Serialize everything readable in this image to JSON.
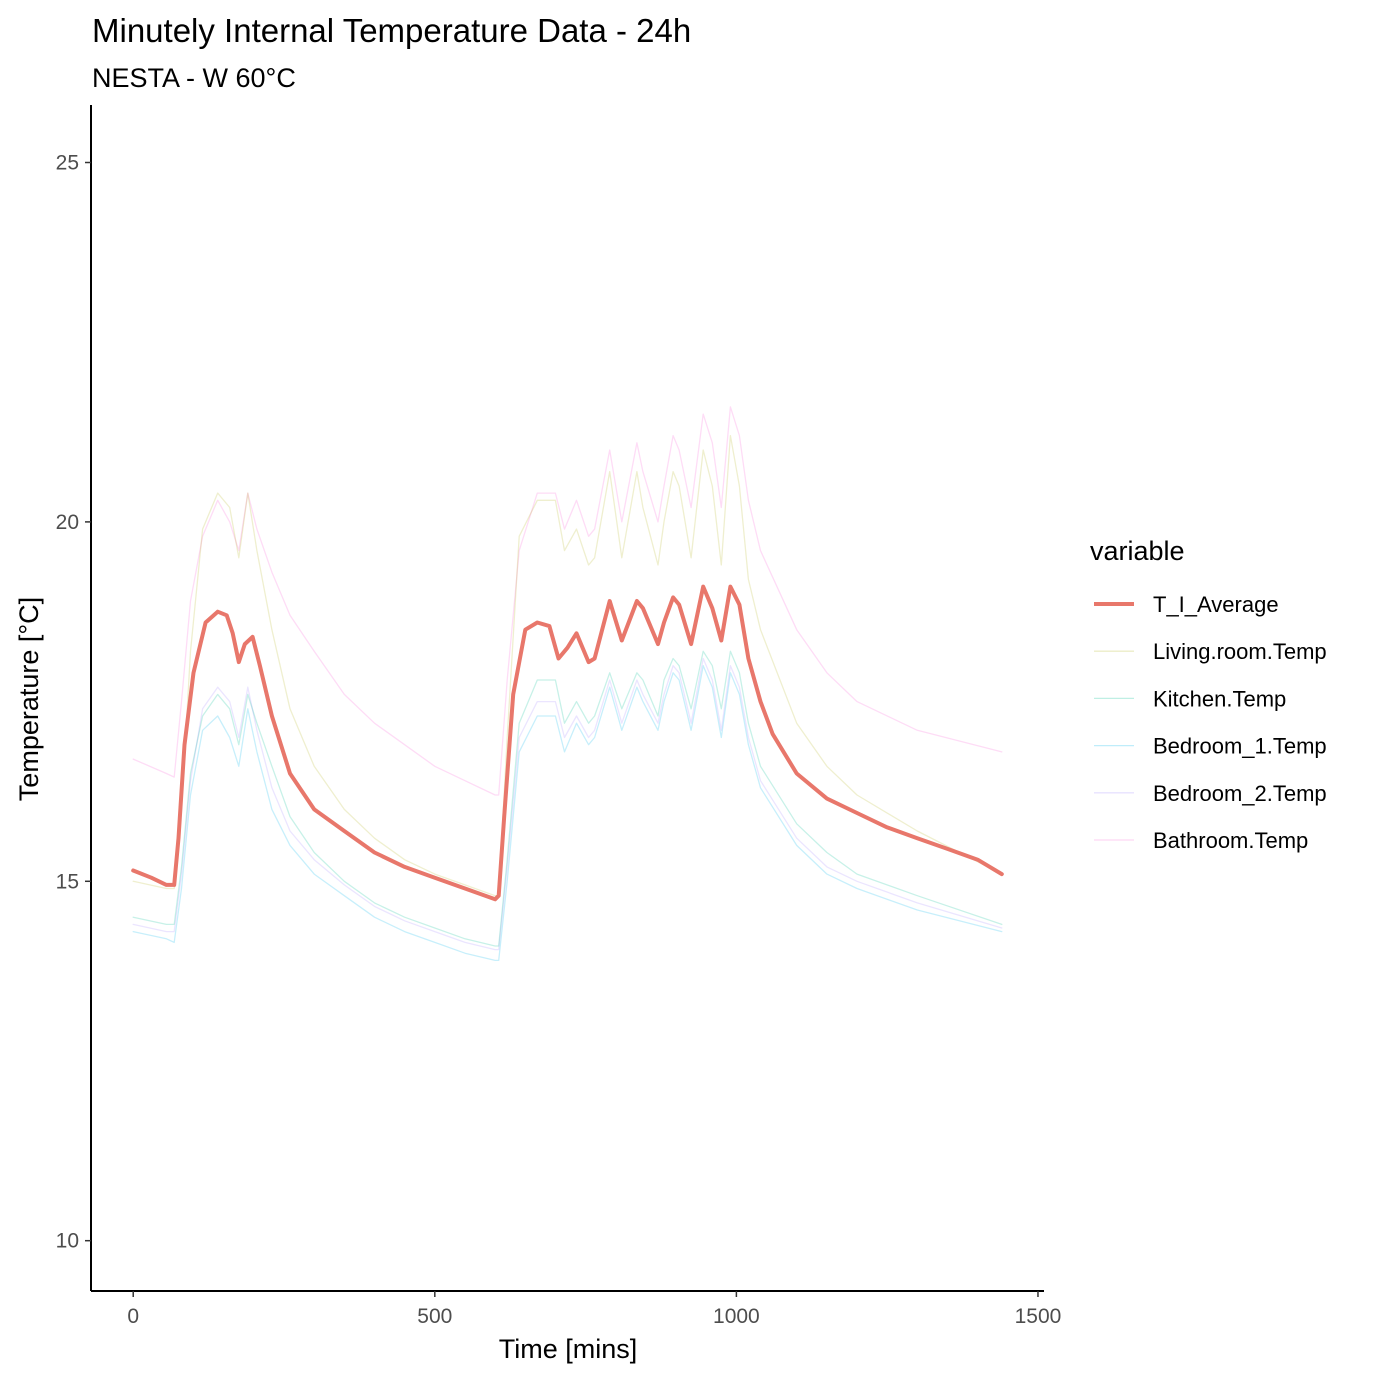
{
  "chart_data": {
    "type": "line",
    "title": "Minutely Internal Temperature Data - 24h",
    "subtitle": "NESTA - W 60°C",
    "xlabel": "Time [mins]",
    "ylabel": "Temperature [°C]",
    "xlim": [
      -70,
      1510
    ],
    "ylim": [
      9.3,
      25.8
    ],
    "xticks": [
      0,
      500,
      1000,
      1500
    ],
    "yticks": [
      10,
      15,
      20,
      25
    ],
    "grid": false,
    "legend_title": "variable",
    "legend_position": "right",
    "series": [
      {
        "name": "T_I_Average",
        "color": "#e8776b",
        "emphasis": "bold",
        "x": [
          0,
          30,
          55,
          68,
          75,
          85,
          100,
          120,
          140,
          155,
          165,
          175,
          185,
          198,
          210,
          230,
          260,
          300,
          350,
          400,
          450,
          500,
          550,
          600,
          606,
          615,
          630,
          650,
          670,
          690,
          705,
          720,
          735,
          755,
          765,
          790,
          810,
          835,
          845,
          870,
          880,
          895,
          905,
          925,
          945,
          960,
          975,
          990,
          1005,
          1020,
          1040,
          1060,
          1100,
          1150,
          1200,
          1250,
          1300,
          1350,
          1400,
          1440
        ],
        "values": [
          15.15,
          15.05,
          14.95,
          14.95,
          15.6,
          16.9,
          17.9,
          18.6,
          18.75,
          18.7,
          18.45,
          18.05,
          18.3,
          18.4,
          18.0,
          17.3,
          16.5,
          16.0,
          15.7,
          15.4,
          15.2,
          15.05,
          14.9,
          14.75,
          14.8,
          15.9,
          17.6,
          18.5,
          18.6,
          18.55,
          18.1,
          18.25,
          18.45,
          18.05,
          18.1,
          18.9,
          18.35,
          18.9,
          18.8,
          18.3,
          18.6,
          18.95,
          18.85,
          18.3,
          19.1,
          18.8,
          18.35,
          19.1,
          18.85,
          18.1,
          17.5,
          17.05,
          16.5,
          16.15,
          15.95,
          15.75,
          15.6,
          15.45,
          15.3,
          15.1
        ]
      },
      {
        "name": "Living.room.Temp",
        "color": "#b5b824",
        "x": [
          0,
          55,
          68,
          80,
          95,
          115,
          140,
          160,
          175,
          190,
          205,
          230,
          260,
          300,
          350,
          400,
          450,
          500,
          550,
          600,
          606,
          620,
          640,
          670,
          700,
          715,
          735,
          755,
          765,
          790,
          810,
          835,
          845,
          870,
          880,
          895,
          905,
          925,
          945,
          960,
          975,
          990,
          1005,
          1020,
          1040,
          1100,
          1150,
          1200,
          1300,
          1440
        ],
        "values": [
          15.0,
          14.9,
          14.9,
          16.0,
          18.2,
          19.9,
          20.4,
          20.2,
          19.5,
          20.4,
          19.6,
          18.5,
          17.4,
          16.6,
          16.0,
          15.6,
          15.3,
          15.1,
          14.95,
          14.8,
          14.8,
          17.0,
          19.8,
          20.3,
          20.3,
          19.6,
          19.9,
          19.4,
          19.5,
          20.7,
          19.5,
          20.7,
          20.2,
          19.4,
          20.0,
          20.7,
          20.5,
          19.5,
          21.0,
          20.5,
          19.4,
          21.2,
          20.5,
          19.2,
          18.5,
          17.2,
          16.6,
          16.2,
          15.7,
          15.1
        ]
      },
      {
        "name": "Kitchen.Temp",
        "color": "#00c094",
        "x": [
          0,
          55,
          68,
          80,
          95,
          115,
          140,
          160,
          175,
          190,
          205,
          230,
          260,
          300,
          350,
          400,
          450,
          500,
          550,
          600,
          606,
          620,
          640,
          670,
          700,
          715,
          735,
          755,
          765,
          790,
          810,
          835,
          845,
          870,
          880,
          895,
          905,
          925,
          945,
          960,
          975,
          990,
          1005,
          1020,
          1040,
          1100,
          1150,
          1200,
          1300,
          1440
        ],
        "values": [
          14.5,
          14.4,
          14.4,
          15.2,
          16.5,
          17.3,
          17.6,
          17.4,
          16.9,
          17.6,
          17.2,
          16.6,
          15.9,
          15.4,
          15.0,
          14.7,
          14.5,
          14.35,
          14.2,
          14.1,
          14.1,
          15.3,
          17.2,
          17.8,
          17.8,
          17.2,
          17.5,
          17.2,
          17.3,
          17.9,
          17.4,
          17.9,
          17.8,
          17.3,
          17.8,
          18.1,
          18.0,
          17.4,
          18.2,
          18.0,
          17.4,
          18.2,
          17.9,
          17.2,
          16.6,
          15.8,
          15.4,
          15.1,
          14.8,
          14.4
        ]
      },
      {
        "name": "Bedroom_1.Temp",
        "color": "#00b6eb",
        "x": [
          0,
          55,
          68,
          80,
          95,
          115,
          140,
          160,
          175,
          190,
          205,
          230,
          260,
          300,
          350,
          400,
          450,
          500,
          550,
          600,
          606,
          620,
          640,
          670,
          700,
          715,
          735,
          755,
          765,
          790,
          810,
          835,
          845,
          870,
          880,
          895,
          905,
          925,
          945,
          960,
          975,
          990,
          1005,
          1020,
          1040,
          1100,
          1150,
          1200,
          1300,
          1440
        ],
        "values": [
          14.3,
          14.2,
          14.15,
          14.9,
          16.2,
          17.1,
          17.3,
          17.0,
          16.6,
          17.4,
          16.8,
          16.0,
          15.5,
          15.1,
          14.8,
          14.5,
          14.3,
          14.15,
          14.0,
          13.9,
          13.9,
          15.0,
          16.8,
          17.3,
          17.3,
          16.8,
          17.2,
          16.9,
          17.0,
          17.7,
          17.1,
          17.7,
          17.5,
          17.1,
          17.5,
          17.9,
          17.8,
          17.1,
          18.0,
          17.7,
          17.0,
          17.9,
          17.6,
          16.9,
          16.3,
          15.5,
          15.1,
          14.9,
          14.6,
          14.3
        ]
      },
      {
        "name": "Bedroom_2.Temp",
        "color": "#a58aff",
        "x": [
          0,
          55,
          68,
          80,
          95,
          115,
          140,
          160,
          175,
          190,
          205,
          230,
          260,
          300,
          350,
          400,
          450,
          500,
          550,
          600,
          606,
          620,
          640,
          670,
          700,
          715,
          735,
          755,
          765,
          790,
          810,
          835,
          845,
          870,
          880,
          895,
          905,
          925,
          945,
          960,
          975,
          990,
          1005,
          1020,
          1040,
          1100,
          1150,
          1200,
          1300,
          1440
        ],
        "values": [
          14.4,
          14.3,
          14.3,
          15.1,
          16.4,
          17.4,
          17.7,
          17.5,
          17.0,
          17.7,
          17.1,
          16.3,
          15.7,
          15.3,
          14.95,
          14.65,
          14.45,
          14.3,
          14.15,
          14.05,
          14.05,
          15.2,
          17.0,
          17.5,
          17.5,
          17.0,
          17.3,
          17.0,
          17.1,
          17.8,
          17.2,
          17.8,
          17.6,
          17.2,
          17.6,
          18.0,
          17.9,
          17.2,
          18.1,
          17.8,
          17.1,
          18.0,
          17.7,
          17.0,
          16.4,
          15.6,
          15.2,
          15.0,
          14.7,
          14.35
        ]
      },
      {
        "name": "Bathroom.Temp",
        "color": "#fb61d7",
        "x": [
          0,
          55,
          68,
          80,
          95,
          115,
          140,
          160,
          175,
          190,
          205,
          230,
          260,
          300,
          350,
          400,
          450,
          500,
          550,
          600,
          606,
          620,
          640,
          670,
          700,
          715,
          735,
          755,
          765,
          790,
          810,
          835,
          845,
          870,
          880,
          895,
          905,
          925,
          945,
          960,
          975,
          990,
          1005,
          1020,
          1040,
          1100,
          1150,
          1200,
          1300,
          1440
        ],
        "values": [
          16.7,
          16.5,
          16.45,
          17.5,
          18.9,
          19.8,
          20.3,
          20.0,
          19.6,
          20.4,
          19.9,
          19.3,
          18.7,
          18.2,
          17.6,
          17.2,
          16.9,
          16.6,
          16.4,
          16.2,
          16.2,
          17.8,
          19.6,
          20.4,
          20.4,
          19.9,
          20.3,
          19.8,
          19.9,
          21.0,
          20.0,
          21.1,
          20.7,
          20.0,
          20.5,
          21.2,
          21.0,
          20.2,
          21.5,
          21.1,
          20.2,
          21.6,
          21.2,
          20.3,
          19.6,
          18.5,
          17.9,
          17.5,
          17.1,
          16.8
        ]
      }
    ]
  }
}
